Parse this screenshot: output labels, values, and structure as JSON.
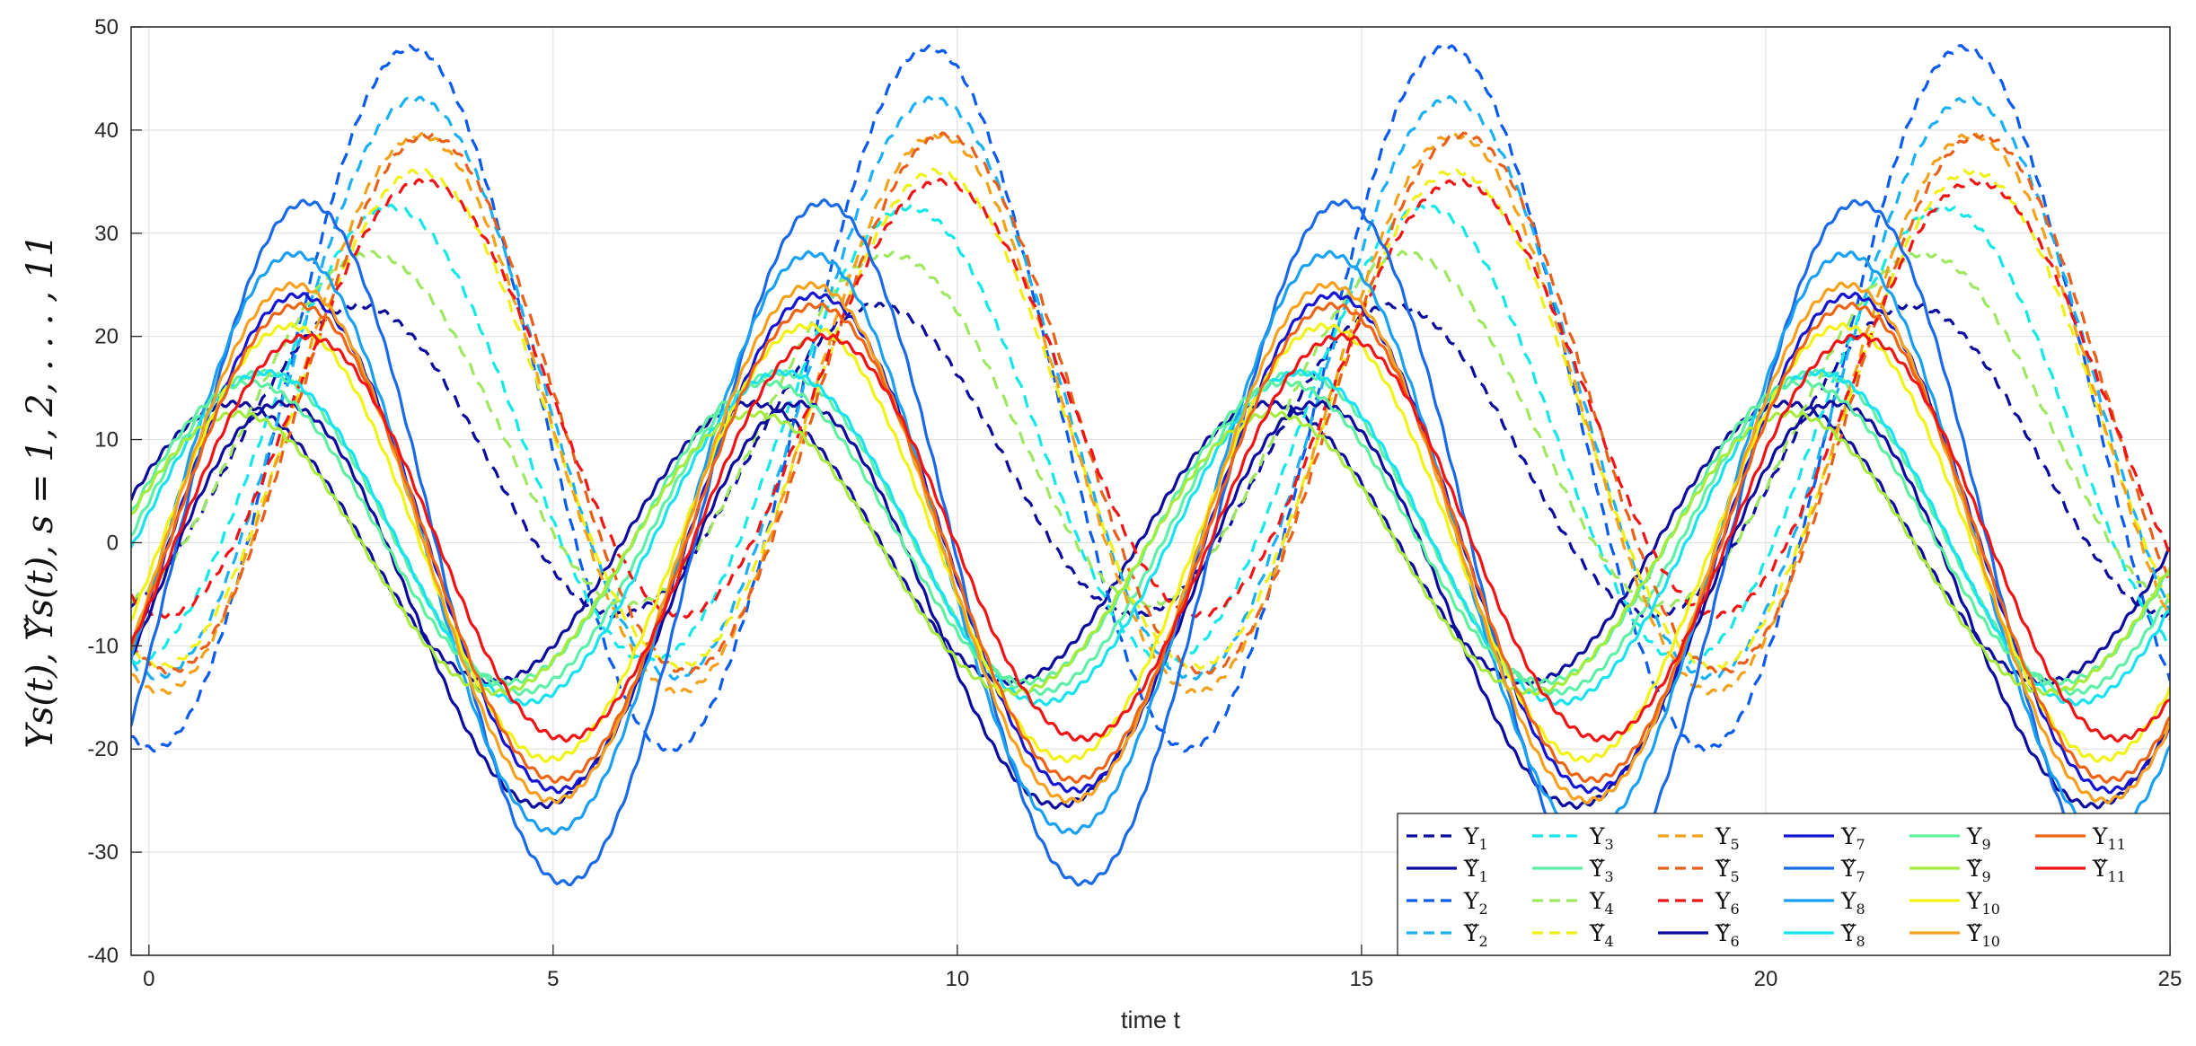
{
  "chart_data": {
    "type": "line",
    "xlabel": "time t",
    "ylabel": "Υs(t), Υ̃s(t),   s = 1, 2, . . . , 11",
    "xlim": [
      0,
      25
    ],
    "ylim": [
      -40,
      50
    ],
    "xticks": [
      "0",
      "5",
      "10",
      "15",
      "20",
      "25"
    ],
    "yticks": [
      "-40",
      "-30",
      "-20",
      "-10",
      "0",
      "10",
      "20",
      "30",
      "40",
      "50"
    ],
    "grid": true,
    "legend_position": "bottom-right",
    "legend_columns": 6,
    "series": [
      {
        "name": "Υ",
        "sub": "1",
        "color": "#0a0a9e",
        "dash": true,
        "amp": 15.0,
        "offset": 8.0,
        "phase": 2.6
      },
      {
        "name": "Υ̃",
        "sub": "1",
        "color": "#0a0a9e",
        "dash": false,
        "amp": 13.5,
        "offset": 0.0,
        "phase": 1.05
      },
      {
        "name": "Υ",
        "sub": "2",
        "color": "#0b5ced",
        "dash": true,
        "amp": 34.0,
        "offset": 14.0,
        "phase": 3.25
      },
      {
        "name": "Υ̃",
        "sub": "2",
        "color": "#1ab0f2",
        "dash": true,
        "amp": 28.0,
        "offset": 15.0,
        "phase": 3.3
      },
      {
        "name": "Υ",
        "sub": "3",
        "color": "#13e8e8",
        "dash": true,
        "amp": 22.0,
        "offset": 10.5,
        "phase": 3.0
      },
      {
        "name": "Υ̃",
        "sub": "3",
        "color": "#5ef0a8",
        "dash": false,
        "amp": 15.5,
        "offset": 1.0,
        "phase": 1.4
      },
      {
        "name": "Υ",
        "sub": "4",
        "color": "#9de860",
        "dash": true,
        "amp": 17.0,
        "offset": 11.0,
        "phase": 2.75
      },
      {
        "name": "Υ̃",
        "sub": "4",
        "color": "#f0f018",
        "dash": true,
        "amp": 24.0,
        "offset": 12.0,
        "phase": 3.35
      },
      {
        "name": "Υ",
        "sub": "5",
        "color": "#f2a21a",
        "dash": true,
        "amp": 27.0,
        "offset": 12.5,
        "phase": 3.35
      },
      {
        "name": "Υ̃",
        "sub": "5",
        "color": "#e8601a",
        "dash": true,
        "amp": 26.0,
        "offset": 13.5,
        "phase": 3.45
      },
      {
        "name": "Υ",
        "sub": "6",
        "color": "#f01414",
        "dash": true,
        "amp": 21.0,
        "offset": 14.0,
        "phase": 3.4
      },
      {
        "name": "Υ̃",
        "sub": "6",
        "color": "#0a0a9e",
        "dash": false,
        "amp": 19.5,
        "offset": -6.0,
        "phase": 1.65
      },
      {
        "name": "Υ",
        "sub": "7",
        "color": "#1414d2",
        "dash": false,
        "amp": 24.0,
        "offset": 0.0,
        "phase": 1.85
      },
      {
        "name": "Υ̃",
        "sub": "7",
        "color": "#1a6ae8",
        "dash": false,
        "amp": 33.0,
        "offset": 0.0,
        "phase": 1.95
      },
      {
        "name": "Υ",
        "sub": "8",
        "color": "#1aa0f0",
        "dash": false,
        "amp": 28.0,
        "offset": 0.0,
        "phase": 1.8
      },
      {
        "name": "Υ̃",
        "sub": "8",
        "color": "#18e2f0",
        "dash": false,
        "amp": 16.0,
        "offset": 0.5,
        "phase": 1.45
      },
      {
        "name": "Υ",
        "sub": "9",
        "color": "#5ef0a0",
        "dash": false,
        "amp": 14.5,
        "offset": 1.0,
        "phase": 1.25
      },
      {
        "name": "Υ̃",
        "sub": "9",
        "color": "#a6ec3c",
        "dash": false,
        "amp": 13.5,
        "offset": -1.0,
        "phase": 1.1
      },
      {
        "name": "Υ",
        "sub": "10",
        "color": "#f2f214",
        "dash": false,
        "amp": 21.0,
        "offset": 0.0,
        "phase": 1.75
      },
      {
        "name": "Υ̃",
        "sub": "10",
        "color": "#f5a11e",
        "dash": false,
        "amp": 25.0,
        "offset": 0.0,
        "phase": 1.8
      },
      {
        "name": "Υ",
        "sub": "11",
        "color": "#ee6414",
        "dash": false,
        "amp": 23.0,
        "offset": 0.0,
        "phase": 1.85
      },
      {
        "name": "Υ̃",
        "sub": "11",
        "color": "#f01414",
        "dash": false,
        "amp": 19.5,
        "offset": 0.5,
        "phase": 1.95
      }
    ]
  }
}
